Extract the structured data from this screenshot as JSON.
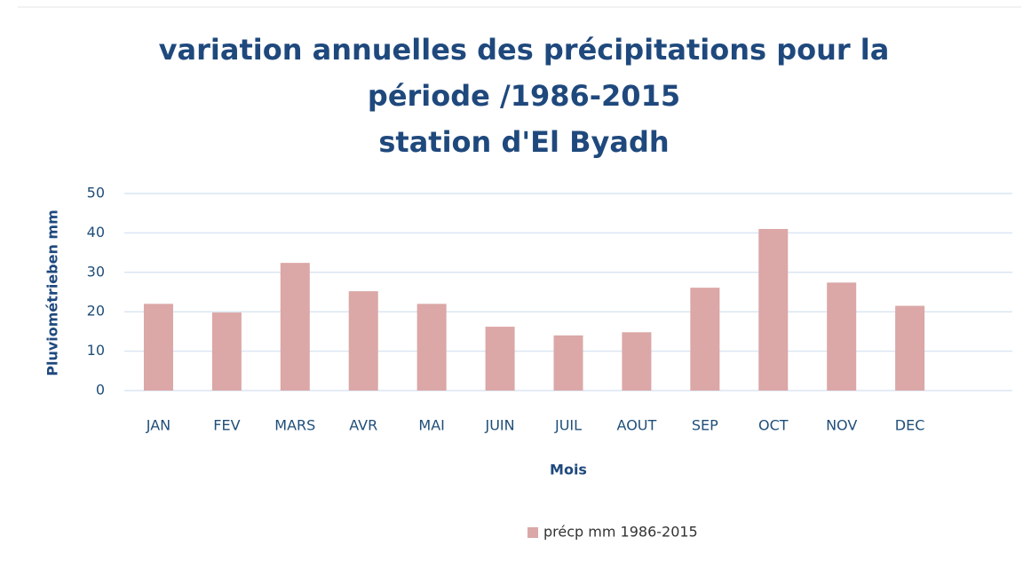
{
  "chart_data": {
    "type": "bar",
    "title": [
      "variation annuelles des précipitations pour la",
      "période /1986-2015",
      "station d'El Byadh"
    ],
    "x_label": "Mois",
    "y_label": "Pluviométrieben mm",
    "categories": [
      "JAN",
      "FEV",
      "MARS",
      "AVR",
      "MAI",
      "JUIN",
      "JUIL",
      "AOUT",
      "SEP",
      "OCT",
      "NOV",
      "DEC"
    ],
    "series": [
      {
        "name": "précp mm 1986-2015",
        "color": "#dba7a7",
        "values": [
          22,
          19.8,
          32.4,
          25.2,
          22,
          16.2,
          14,
          14.8,
          26.1,
          41,
          27.4,
          21.5
        ]
      }
    ],
    "ylim": [
      0,
      50
    ],
    "yticks": [
      0,
      10,
      20,
      30,
      40,
      50
    ],
    "grid": true,
    "legend": "bottom"
  }
}
